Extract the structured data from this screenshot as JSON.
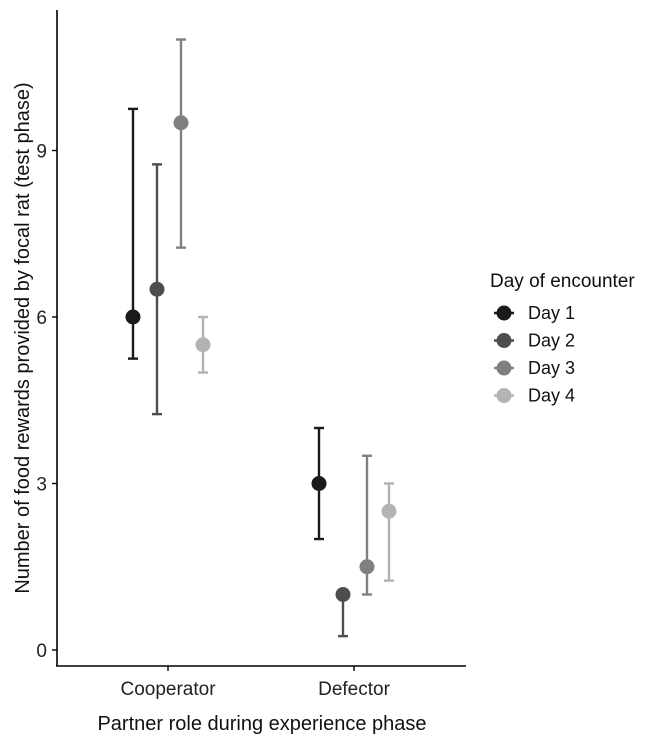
{
  "chart_data": {
    "type": "scatter",
    "xlabel": "Partner role during experience phase",
    "ylabel": "Number of food rewards provided by focal rat (test phase)",
    "categories": [
      "Cooperator",
      "Defector"
    ],
    "yticks": [
      "0",
      "3",
      "6",
      "9"
    ],
    "ylim": [
      0,
      9
    ],
    "grid": false,
    "legend": {
      "title": "Day of encounter",
      "position": "right"
    },
    "series": [
      {
        "name": "Day 1",
        "color": "#1a1a1a",
        "values": [
          6.0,
          3.0
        ],
        "lower": [
          5.25,
          2.0
        ],
        "upper": [
          9.75,
          4.0
        ]
      },
      {
        "name": "Day 2",
        "color": "#4d4d4d",
        "values": [
          6.5,
          1.0
        ],
        "lower": [
          4.25,
          0.25
        ],
        "upper": [
          8.75,
          1.0
        ]
      },
      {
        "name": "Day 3",
        "color": "#808080",
        "values": [
          9.5,
          1.5
        ],
        "lower": [
          7.25,
          1.0
        ],
        "upper": [
          11.0,
          3.5
        ]
      },
      {
        "name": "Day 4",
        "color": "#b3b3b3",
        "values": [
          5.5,
          2.5
        ],
        "lower": [
          5.0,
          1.25
        ],
        "upper": [
          6.0,
          3.0
        ]
      }
    ]
  }
}
